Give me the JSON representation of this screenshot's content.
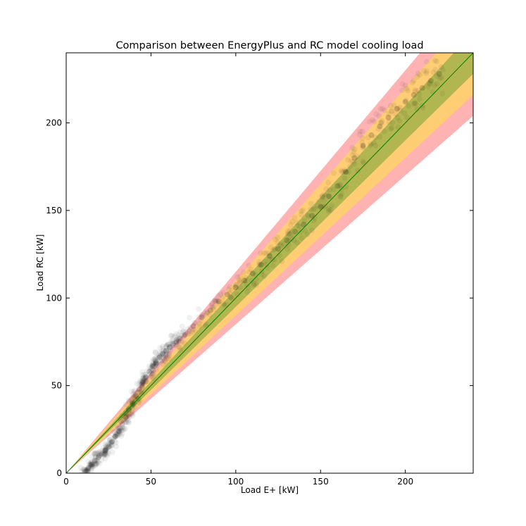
{
  "chart_data": {
    "type": "scatter",
    "title": "Comparison between EnergyPlus and RC model cooling load",
    "xlabel": "Load E+ [kW]",
    "ylabel": "Load RC [kW]",
    "xlim": [
      0,
      240
    ],
    "ylim": [
      0,
      240
    ],
    "xticks": [
      0,
      50,
      100,
      150,
      200
    ],
    "yticks": [
      0,
      50,
      100,
      150,
      200
    ],
    "grid": false,
    "legend": "none",
    "reference_line": {
      "slope": 1,
      "color": "#008000"
    },
    "tolerance_bands": [
      {
        "relative": 0.15,
        "color": "#ff0000",
        "opacity": 0.3
      },
      {
        "relative": 0.1,
        "color": "#ffff00",
        "opacity": 0.35
      },
      {
        "relative": 0.05,
        "color": "#008000",
        "opacity": 0.3
      }
    ],
    "scatter_color": "#000000",
    "scatter_opacity": 0.06,
    "series": [
      {
        "x": [
          11,
          13,
          15,
          17,
          19,
          21,
          23,
          25,
          27,
          29,
          31,
          33,
          35,
          37,
          39,
          41,
          43,
          45,
          47,
          49,
          51,
          53,
          55,
          57,
          59,
          61,
          63,
          65,
          67,
          70,
          75,
          80,
          85,
          90,
          95,
          100,
          105,
          110,
          115,
          120,
          125,
          130,
          135,
          140,
          145,
          150,
          155,
          160,
          165,
          170,
          175,
          180,
          185,
          190,
          195,
          200,
          205,
          210,
          215,
          220
        ],
        "y": [
          1,
          3,
          5,
          7,
          9,
          11,
          13,
          15,
          18,
          21,
          24,
          28,
          32,
          36,
          40,
          44,
          48,
          52,
          55,
          58,
          61,
          63,
          66,
          68,
          70,
          72,
          74,
          75,
          77,
          79,
          84,
          89,
          93,
          98,
          102,
          106,
          110,
          114,
          119,
          124,
          128,
          133,
          138,
          142,
          147,
          152,
          158,
          164,
          172,
          180,
          187,
          193,
          198,
          203,
          208,
          212,
          216,
          220,
          224,
          228
        ]
      }
    ]
  }
}
